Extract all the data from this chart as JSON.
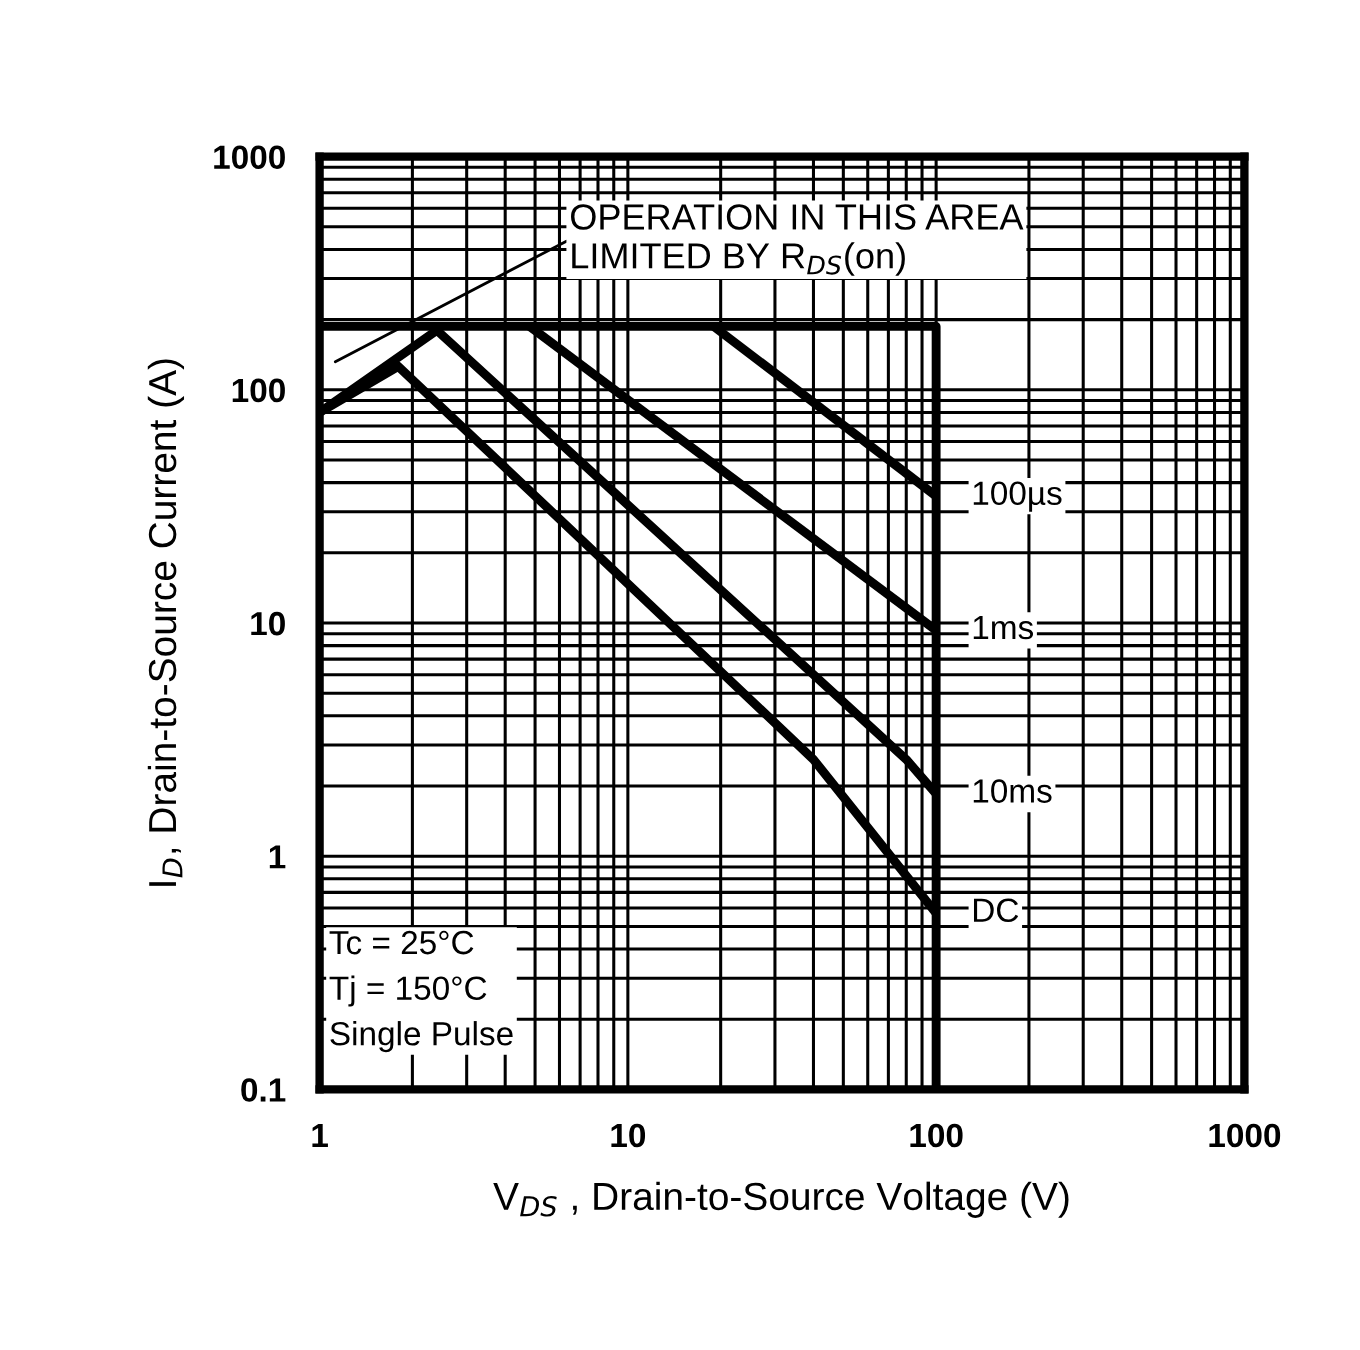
{
  "chart_data": {
    "type": "line",
    "xlabel": "V$_{DS}$ , Drain-to-Source Voltage (V)",
    "ylabel": "I$_{D}$, Drain-to-Source Current (A)",
    "log": "xy",
    "grid": true,
    "line_style": "solid",
    "marker": "none",
    "xlim": [
      1,
      1000
    ],
    "xticks": [
      1,
      10,
      100,
      1000
    ],
    "ylim": [
      0.1,
      1000
    ],
    "yticks": [
      0.1,
      1,
      10,
      100,
      1000
    ],
    "series": [
      {
        "color": "#000000",
        "x": [
          1,
          100,
          100
        ],
        "values": [
          187,
          187,
          0.1
        ]
      },
      {
        "name": "100µs",
        "color": "#000000",
        "x": [
          19,
          100
        ],
        "values": [
          187,
          35
        ]
      },
      {
        "name": "1ms",
        "color": "#000000",
        "x": [
          4.8,
          100
        ],
        "values": [
          187,
          9.3
        ]
      },
      {
        "name": "10ms",
        "color": "#000000",
        "x": [
          1,
          2.4,
          80,
          100
        ],
        "values": [
          80,
          180,
          2.6,
          1.85
        ]
      },
      {
        "name": "DC",
        "color": "#000000",
        "x": [
          1,
          1.8,
          40,
          100
        ],
        "values": [
          80,
          126,
          2.6,
          0.57
        ]
      }
    ],
    "annotations": [
      "OPERATION IN THIS AREA\nLIMITED BY R$_{DS}$(on)",
      "Tc = 25°C\nTj = 150°C\nSingle Pulse"
    ]
  }
}
